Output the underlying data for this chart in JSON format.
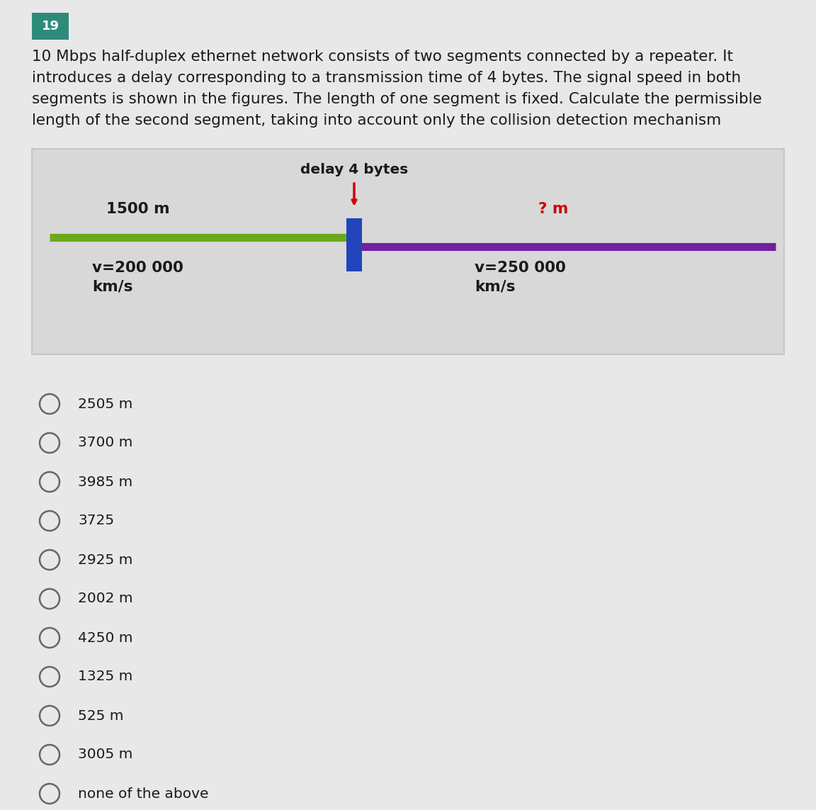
{
  "question_number": "19",
  "question_number_bg": "#2e8b7a",
  "question_number_color": "#ffffff",
  "question_text_line1": "10 Mbps half-duplex ethernet network consists of two segments connected by a repeater. It",
  "question_text_line2": "introduces a delay corresponding to a transmission time of 4 bytes. The signal speed in both",
  "question_text_line3": "segments is shown in the figures. The length of one segment is fixed. Calculate the permissible",
  "question_text_line4": "length of the second segment, taking into account only the collision detection mechanism",
  "diagram_bg": "#d8d8d8",
  "diagram_border": "#c0c0c0",
  "delay_label": "delay 4 bytes",
  "delay_arrow_color": "#cc0000",
  "seg1_label": "1500 m",
  "seg2_label": "? m",
  "seg2_label_color": "#cc0000",
  "seg1_color": "#6aaa1a",
  "seg2_color": "#7020a0",
  "repeater_color": "#2244bb",
  "v1_label_line1": "v=200 000",
  "v1_label_line2": "km/s",
  "v2_label_line1": "v=250 000",
  "v2_label_line2": "km/s",
  "choices": [
    "2505 m",
    "3700 m",
    "3985 m",
    "3725",
    "2925 m",
    "2002 m",
    "4250 m",
    "1325 m",
    "525 m",
    "3005 m",
    "none of the above"
  ],
  "background_color": "#e8e8e8",
  "text_color": "#1a1a1a",
  "choice_circle_color": "#666666",
  "font_size_question": 15.5,
  "font_size_choices": 14.5,
  "font_size_diagram": 14.5
}
